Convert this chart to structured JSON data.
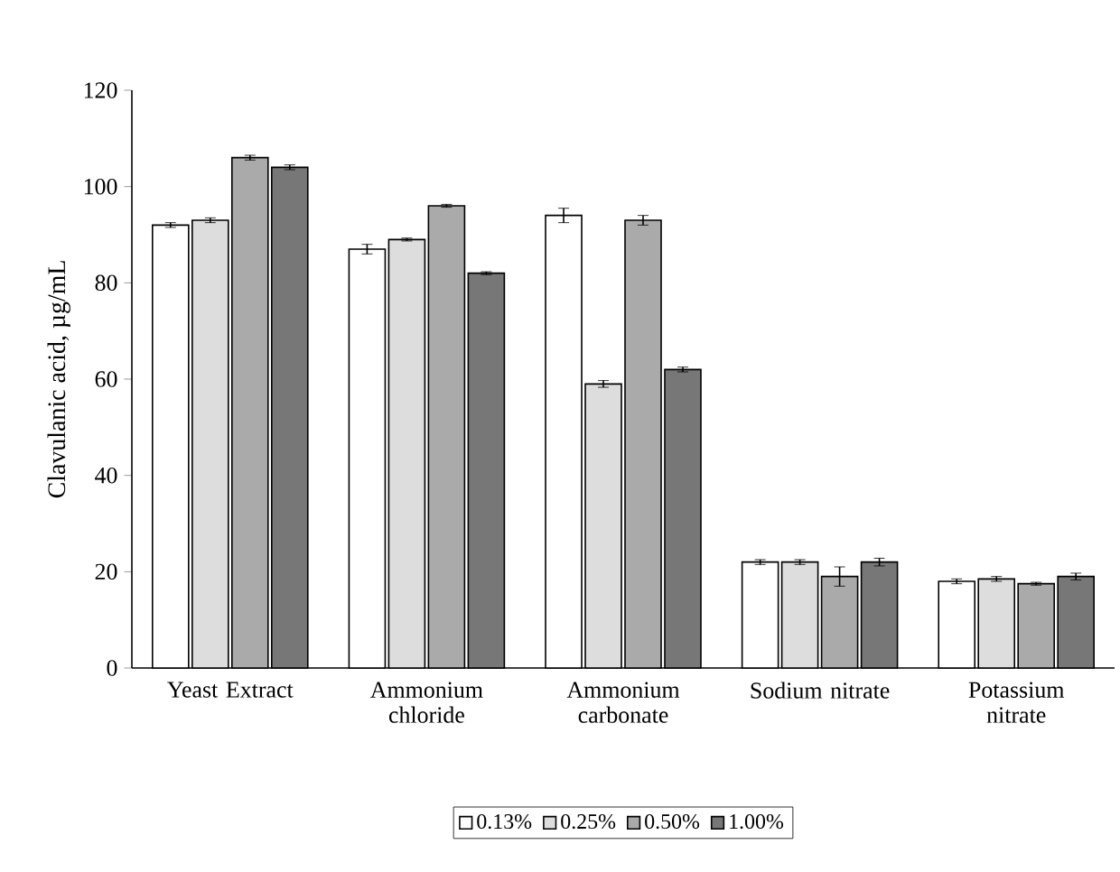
{
  "chart_data": {
    "type": "bar",
    "ylabel": "Clavulanic acid, µg/mL",
    "categories": [
      "Yeast Extract",
      "Ammonium chloride",
      "Ammonium carbonate",
      "Sodium nitrate",
      "Potassium nitrate"
    ],
    "series": [
      {
        "name": "0.13%",
        "color": "#ffffff",
        "values": [
          92,
          87,
          94,
          22,
          18
        ],
        "errors": [
          0.5,
          1,
          1.5,
          0.5,
          0.5
        ]
      },
      {
        "name": "0.25%",
        "color": "#dddddd",
        "values": [
          93,
          89,
          59,
          22,
          18.5
        ],
        "errors": [
          0.5,
          0.3,
          0.7,
          0.5,
          0.5
        ]
      },
      {
        "name": "0.50%",
        "color": "#aaaaaa",
        "values": [
          106,
          96,
          93,
          19,
          17.5
        ],
        "errors": [
          0.5,
          0.3,
          1,
          2,
          0.3
        ]
      },
      {
        "name": "1.00%",
        "color": "#777777",
        "values": [
          104,
          82,
          62,
          22,
          19
        ],
        "errors": [
          0.5,
          0.3,
          0.5,
          0.8,
          0.7
        ]
      }
    ],
    "ylim": [
      0,
      120
    ],
    "yticks": [
      0,
      20,
      40,
      60,
      80,
      100,
      120
    ],
    "grid": false,
    "legend": "bottom"
  }
}
